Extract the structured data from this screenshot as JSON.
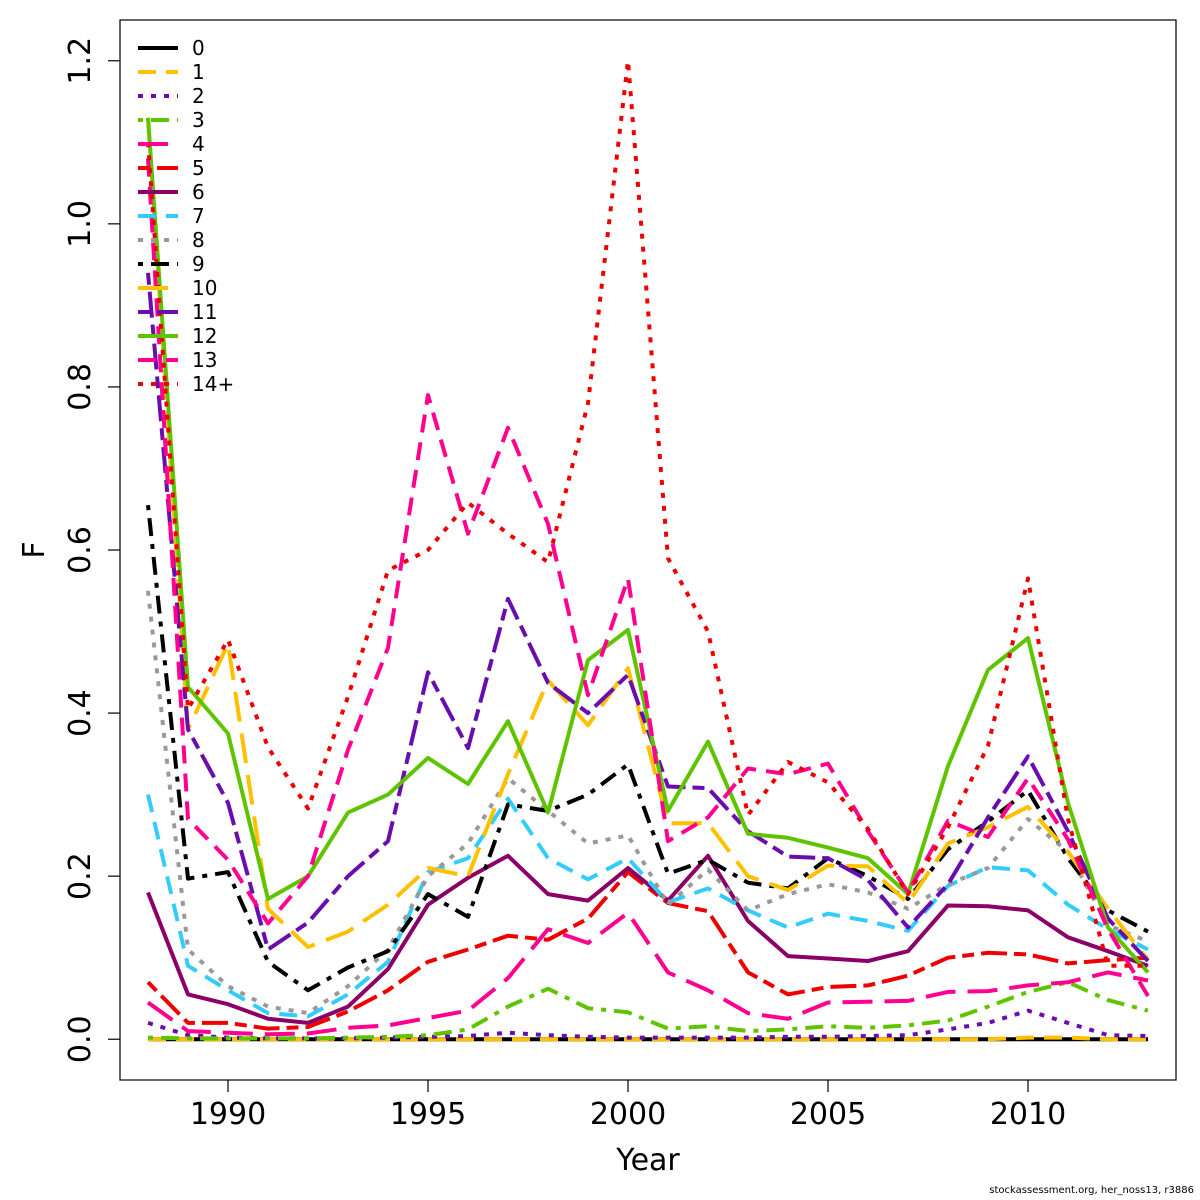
{
  "footer": "stockassessment.org, her_noss13, r3886",
  "chart_data": {
    "type": "line",
    "xlabel": "Year",
    "ylabel": "F",
    "xlim": [
      1987.3,
      2013.7
    ],
    "ylim": [
      -0.05,
      1.25
    ],
    "x_ticks": [
      1990,
      1995,
      2000,
      2005,
      2010
    ],
    "y_ticks": [
      0.0,
      0.2,
      0.4,
      0.6,
      0.8,
      1.0,
      1.2
    ],
    "y_tick_labels": [
      "0.0",
      "0.2",
      "0.4",
      "0.6",
      "0.8",
      "1.0",
      "1.2"
    ],
    "legend_position": "top-left",
    "x": [
      1988,
      1989,
      1990,
      1991,
      1992,
      1993,
      1994,
      1995,
      1996,
      1997,
      1998,
      1999,
      2000,
      2001,
      2002,
      2003,
      2004,
      2005,
      2006,
      2007,
      2008,
      2009,
      2010,
      2011,
      2012,
      2013
    ],
    "series": [
      {
        "name": "0",
        "color": "#000000",
        "dash": "solid",
        "values": [
          0,
          0,
          0,
          0,
          0,
          0,
          0,
          0,
          0,
          0,
          0,
          0,
          0,
          0,
          0,
          0,
          0,
          0,
          0,
          0,
          0,
          0,
          0,
          0,
          0,
          0
        ]
      },
      {
        "name": "1",
        "color": "#FFC000",
        "dash": "dash",
        "values": [
          0,
          0,
          0,
          0,
          0,
          0,
          0,
          0,
          0,
          0,
          0,
          0,
          0,
          0,
          0,
          0,
          0,
          0,
          0,
          0,
          0,
          0,
          0.002,
          0.002,
          0,
          0
        ]
      },
      {
        "name": "2",
        "color": "#6A0DAD",
        "dash": "dot",
        "values": [
          0.02,
          0.005,
          0.002,
          0.001,
          0.001,
          0.001,
          0.002,
          0.003,
          0.004,
          0.008,
          0.005,
          0.003,
          0.002,
          0.002,
          0.002,
          0.002,
          0.003,
          0.003,
          0.004,
          0.005,
          0.012,
          0.02,
          0.035,
          0.02,
          0.005,
          0.004
        ]
      },
      {
        "name": "3",
        "color": "#5FC400",
        "dash": "dotdash",
        "values": [
          0.002,
          0.001,
          0.001,
          0.001,
          0.001,
          0.002,
          0.003,
          0.005,
          0.012,
          0.04,
          0.062,
          0.038,
          0.033,
          0.013,
          0.016,
          0.01,
          0.012,
          0.016,
          0.014,
          0.017,
          0.023,
          0.04,
          0.058,
          0.07,
          0.048,
          0.035
        ]
      },
      {
        "name": "4",
        "color": "#FF0090",
        "dash": "longdash",
        "values": [
          0.045,
          0.01,
          0.008,
          0.006,
          0.007,
          0.014,
          0.017,
          0.026,
          0.035,
          0.075,
          0.135,
          0.118,
          0.155,
          0.082,
          0.06,
          0.032,
          0.025,
          0.045,
          0.046,
          0.047,
          0.058,
          0.059,
          0.066,
          0.07,
          0.082,
          0.072
        ]
      },
      {
        "name": "5",
        "color": "#EE0000",
        "dash": "twodash",
        "values": [
          0.07,
          0.02,
          0.02,
          0.013,
          0.015,
          0.034,
          0.06,
          0.095,
          0.11,
          0.127,
          0.122,
          0.148,
          0.205,
          0.167,
          0.157,
          0.082,
          0.055,
          0.064,
          0.066,
          0.078,
          0.1,
          0.106,
          0.104,
          0.093,
          0.097,
          0.1
        ]
      },
      {
        "name": "6",
        "color": "#8B0066",
        "dash": "solid",
        "values": [
          0.18,
          0.055,
          0.043,
          0.025,
          0.02,
          0.04,
          0.086,
          0.165,
          0.198,
          0.225,
          0.178,
          0.17,
          0.21,
          0.17,
          0.225,
          0.145,
          0.102,
          0.099,
          0.096,
          0.108,
          0.164,
          0.163,
          0.158,
          0.125,
          0.108,
          0.09
        ]
      },
      {
        "name": "7",
        "color": "#33CCFF",
        "dash": "dash",
        "values": [
          0.3,
          0.09,
          0.06,
          0.032,
          0.028,
          0.055,
          0.095,
          0.205,
          0.222,
          0.295,
          0.222,
          0.196,
          0.222,
          0.168,
          0.185,
          0.158,
          0.137,
          0.154,
          0.145,
          0.133,
          0.188,
          0.211,
          0.207,
          0.165,
          0.135,
          0.11
        ]
      },
      {
        "name": "8",
        "color": "#999999",
        "dash": "dot",
        "values": [
          0.55,
          0.11,
          0.065,
          0.04,
          0.032,
          0.065,
          0.11,
          0.2,
          0.24,
          0.32,
          0.28,
          0.24,
          0.25,
          0.165,
          0.208,
          0.158,
          0.178,
          0.19,
          0.18,
          0.16,
          0.19,
          0.21,
          0.27,
          0.23,
          0.14,
          0.12
        ]
      },
      {
        "name": "9",
        "color": "#000000",
        "dash": "dotdash",
        "values": [
          0.655,
          0.197,
          0.205,
          0.095,
          0.06,
          0.088,
          0.108,
          0.178,
          0.15,
          0.288,
          0.28,
          0.3,
          0.337,
          0.203,
          0.22,
          0.192,
          0.185,
          0.222,
          0.2,
          0.172,
          0.233,
          0.267,
          0.305,
          0.222,
          0.158,
          0.132
        ]
      },
      {
        "name": "10",
        "color": "#FFC000",
        "dash": "longdash",
        "values": [
          1.13,
          0.38,
          0.485,
          0.16,
          0.113,
          0.132,
          0.165,
          0.21,
          0.2,
          0.325,
          0.44,
          0.385,
          0.455,
          0.265,
          0.265,
          0.2,
          0.183,
          0.213,
          0.212,
          0.167,
          0.24,
          0.26,
          0.285,
          0.23,
          0.16,
          0.097
        ]
      },
      {
        "name": "11",
        "color": "#6A0DAD",
        "dash": "twodash",
        "values": [
          0.94,
          0.38,
          0.29,
          0.11,
          0.143,
          0.2,
          0.243,
          0.45,
          0.357,
          0.54,
          0.437,
          0.4,
          0.447,
          0.31,
          0.308,
          0.255,
          0.224,
          0.222,
          0.195,
          0.137,
          0.19,
          0.272,
          0.347,
          0.255,
          0.148,
          0.096
        ]
      },
      {
        "name": "12",
        "color": "#5FC400",
        "dash": "solid",
        "values": [
          1.13,
          0.432,
          0.375,
          0.172,
          0.2,
          0.278,
          0.3,
          0.345,
          0.313,
          0.39,
          0.278,
          0.465,
          0.502,
          0.28,
          0.365,
          0.252,
          0.247,
          0.235,
          0.222,
          0.178,
          0.335,
          0.453,
          0.492,
          0.29,
          0.137,
          0.082
        ]
      },
      {
        "name": "13",
        "color": "#FF0090",
        "dash": "dash",
        "values": [
          1.08,
          0.27,
          0.22,
          0.142,
          0.2,
          0.355,
          0.48,
          0.79,
          0.62,
          0.75,
          0.632,
          0.422,
          0.565,
          0.243,
          0.272,
          0.332,
          0.325,
          0.338,
          0.255,
          0.18,
          0.268,
          0.248,
          0.32,
          0.245,
          0.135,
          0.053
        ]
      },
      {
        "name": "14+",
        "color": "#EE0000",
        "dash": "dot",
        "values": [
          1.1,
          0.405,
          0.49,
          0.358,
          0.283,
          0.42,
          0.575,
          0.6,
          0.658,
          0.62,
          0.585,
          0.78,
          1.2,
          0.59,
          0.5,
          0.275,
          0.34,
          0.315,
          0.258,
          0.178,
          0.26,
          0.36,
          0.565,
          0.27,
          0.09,
          0.09
        ]
      }
    ]
  }
}
